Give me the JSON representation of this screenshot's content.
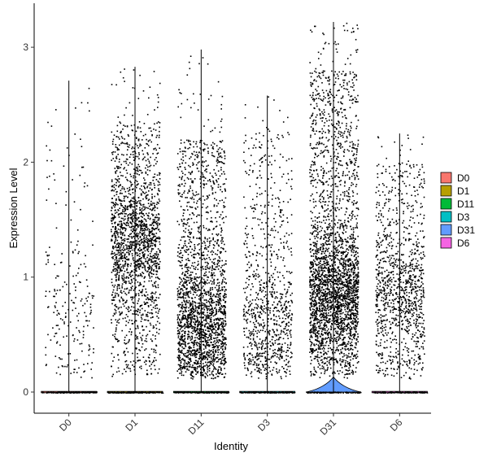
{
  "chart_data": {
    "type": "violin",
    "title": "",
    "xlabel": "Identity",
    "ylabel": "Expression Level",
    "ylim": [
      -0.18,
      3.35
    ],
    "y_ticks": [
      0,
      1,
      2,
      3
    ],
    "grid": false,
    "legend_position": "right",
    "categories": [
      "D0",
      "D1",
      "D11",
      "D3",
      "D31",
      "D6"
    ],
    "colors": [
      "#F8766D",
      "#B79F00",
      "#00BA38",
      "#00BFC4",
      "#619CFF",
      "#F564E3"
    ],
    "max_expression": [
      2.71,
      2.83,
      2.98,
      2.58,
      3.22,
      2.25
    ],
    "points_shown": [
      220,
      1900,
      2200,
      900,
      3000,
      1100
    ],
    "point_spread_top": [
      2.5,
      2.35,
      2.2,
      2.25,
      2.8,
      2.0
    ],
    "point_dense_center": [
      0.65,
      1.3,
      0.6,
      0.55,
      0.85,
      0.85
    ],
    "violin_height_nonzero": [
      0,
      0,
      0,
      0,
      0.12,
      0
    ]
  }
}
